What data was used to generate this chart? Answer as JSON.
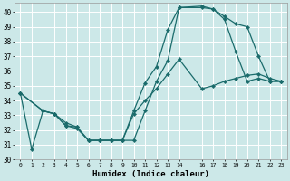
{
  "xlabel": "Humidex (Indice chaleur)",
  "bg_color": "#cce8e8",
  "grid_color": "#ffffff",
  "line_color": "#1a6b6b",
  "xlim": [
    -0.5,
    23.5
  ],
  "ylim": [
    30,
    40.6
  ],
  "yticks": [
    30,
    31,
    32,
    33,
    34,
    35,
    36,
    37,
    38,
    39,
    40
  ],
  "xticks": [
    0,
    1,
    2,
    3,
    4,
    5,
    6,
    7,
    8,
    9,
    10,
    11,
    12,
    13,
    14,
    16,
    17,
    18,
    19,
    20,
    21,
    22,
    23
  ],
  "line1_x": [
    0,
    1,
    2,
    3,
    4,
    5,
    6,
    7,
    8,
    9,
    10,
    11,
    12,
    13,
    14,
    16,
    17,
    18,
    19,
    20,
    21,
    22,
    23
  ],
  "line1_y": [
    34.5,
    30.7,
    33.3,
    33.1,
    32.5,
    32.2,
    31.3,
    31.3,
    31.3,
    31.3,
    31.3,
    33.3,
    35.3,
    36.7,
    40.3,
    40.4,
    40.2,
    39.7,
    39.2,
    39.0,
    37.0,
    35.3,
    35.3
  ],
  "line2_x": [
    0,
    2,
    3,
    4,
    5,
    6,
    7,
    8,
    9,
    10,
    11,
    12,
    13,
    14,
    16,
    17,
    18,
    19,
    20,
    21,
    22,
    23
  ],
  "line2_y": [
    34.5,
    33.3,
    33.1,
    32.3,
    32.2,
    31.3,
    31.3,
    31.3,
    31.3,
    33.3,
    35.2,
    36.3,
    38.8,
    40.3,
    40.3,
    40.2,
    39.5,
    37.3,
    35.3,
    35.5,
    35.3,
    35.3
  ],
  "line3_x": [
    0,
    2,
    3,
    4,
    5,
    6,
    7,
    8,
    9,
    10,
    11,
    12,
    13,
    14,
    16,
    17,
    18,
    19,
    20,
    21,
    22,
    23
  ],
  "line3_y": [
    34.5,
    33.3,
    33.1,
    32.3,
    32.1,
    31.3,
    31.3,
    31.3,
    31.3,
    33.1,
    34.0,
    34.8,
    35.8,
    36.8,
    34.8,
    35.0,
    35.3,
    35.5,
    35.7,
    35.8,
    35.5,
    35.3
  ]
}
